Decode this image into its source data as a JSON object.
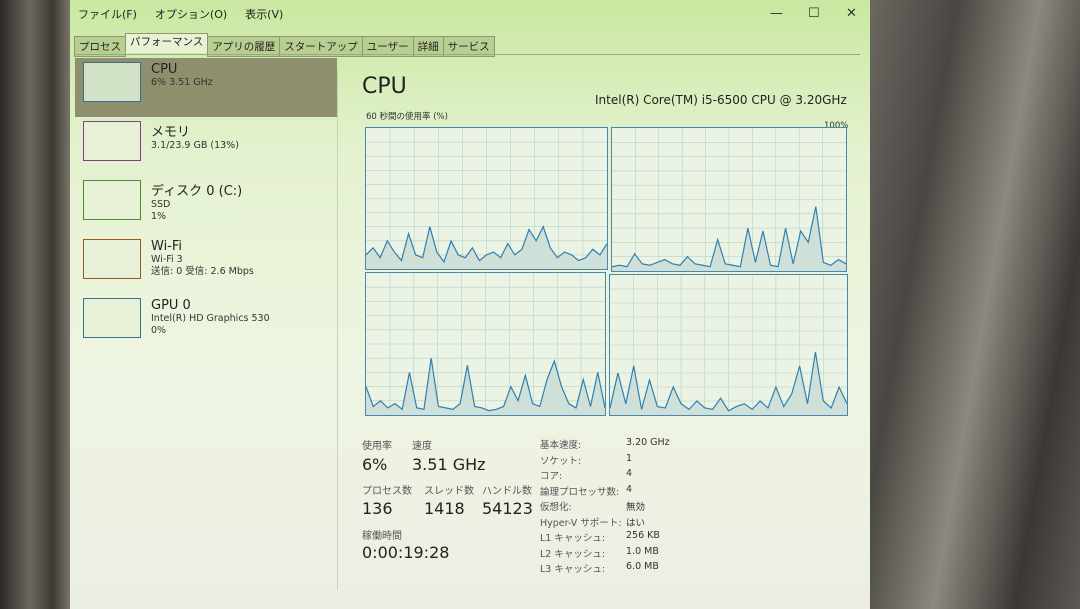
{
  "menu": [
    "ファイル(F)",
    "オプション(O)",
    "表示(V)"
  ],
  "window_controls": {
    "minimize": "—",
    "maximize": "☐",
    "close": "✕"
  },
  "tabs": [
    "プロセス",
    "パフォーマンス",
    "アプリの履歴",
    "スタートアップ",
    "ユーザー",
    "詳細",
    "サービス"
  ],
  "active_tab": "パフォーマンス",
  "sidebar": [
    {
      "name": "CPU",
      "lines": [
        "6%  3.51 GHz"
      ],
      "color": "#3b6f8c"
    },
    {
      "name": "メモリ",
      "lines": [
        "3.1/23.9 GB (13%)"
      ],
      "color": "#8b3a8b"
    },
    {
      "name": "ディスク 0 (C:)",
      "lines": [
        "SSD",
        "1%"
      ],
      "color": "#4d8a2a"
    },
    {
      "name": "Wi-Fi",
      "lines": [
        "Wi-Fi 3",
        "送信: 0 受信: 2.6 Mbps"
      ],
      "color": "#a5521f"
    },
    {
      "name": "GPU 0",
      "lines": [
        "Intel(R) HD Graphics 530",
        "0%"
      ],
      "color": "#3b6f8c"
    }
  ],
  "main": {
    "title": "CPU",
    "model": "Intel(R) Core(TM) i5-6500 CPU @ 3.20GHz",
    "graph_caption": "60 秒間の使用率 (%)",
    "graph_max": "100%",
    "line_color": "#2f7fb0",
    "cores": [
      [
        10,
        15,
        8,
        20,
        12,
        6,
        25,
        10,
        8,
        30,
        12,
        5,
        20,
        10,
        8,
        15,
        6,
        10,
        12,
        8,
        18,
        10,
        14,
        28,
        20,
        30,
        15,
        8,
        12,
        10,
        6,
        8,
        14,
        10,
        18
      ],
      [
        3,
        4,
        3,
        12,
        5,
        4,
        6,
        8,
        5,
        4,
        10,
        5,
        4,
        3,
        22,
        5,
        4,
        3,
        30,
        6,
        28,
        4,
        3,
        30,
        5,
        28,
        20,
        45,
        6,
        4,
        8,
        5
      ],
      [
        20,
        6,
        10,
        5,
        8,
        4,
        30,
        5,
        4,
        40,
        6,
        5,
        4,
        8,
        35,
        6,
        5,
        3,
        4,
        6,
        20,
        10,
        28,
        8,
        6,
        25,
        38,
        20,
        8,
        5,
        25,
        6,
        30,
        5
      ],
      [
        5,
        30,
        8,
        35,
        4,
        25,
        6,
        5,
        20,
        8,
        4,
        10,
        5,
        4,
        12,
        3,
        6,
        8,
        4,
        10,
        5,
        20,
        6,
        15,
        35,
        8,
        45,
        10,
        5,
        20,
        8
      ]
    ],
    "stats": {
      "usage_label": "使用率",
      "usage": "6%",
      "speed_label": "速度",
      "speed": "3.51 GHz",
      "processes_label": "プロセス数",
      "processes": "136",
      "threads_label": "スレッド数",
      "threads": "1418",
      "handles_label": "ハンドル数",
      "handles": "54123",
      "uptime_label": "稼働時間",
      "uptime": "0:00:19:28"
    },
    "specs": [
      {
        "k": "基本速度:",
        "v": "3.20 GHz"
      },
      {
        "k": "ソケット:",
        "v": "1"
      },
      {
        "k": "コア:",
        "v": "4"
      },
      {
        "k": "論理プロセッサ数:",
        "v": "4"
      },
      {
        "k": "仮想化:",
        "v": "無効"
      },
      {
        "k": "Hyper-V サポート:",
        "v": "はい"
      },
      {
        "k": "L1 キャッシュ:",
        "v": "256 KB"
      },
      {
        "k": "L2 キャッシュ:",
        "v": "1.0 MB"
      },
      {
        "k": "L3 キャッシュ:",
        "v": "6.0 MB"
      }
    ]
  }
}
